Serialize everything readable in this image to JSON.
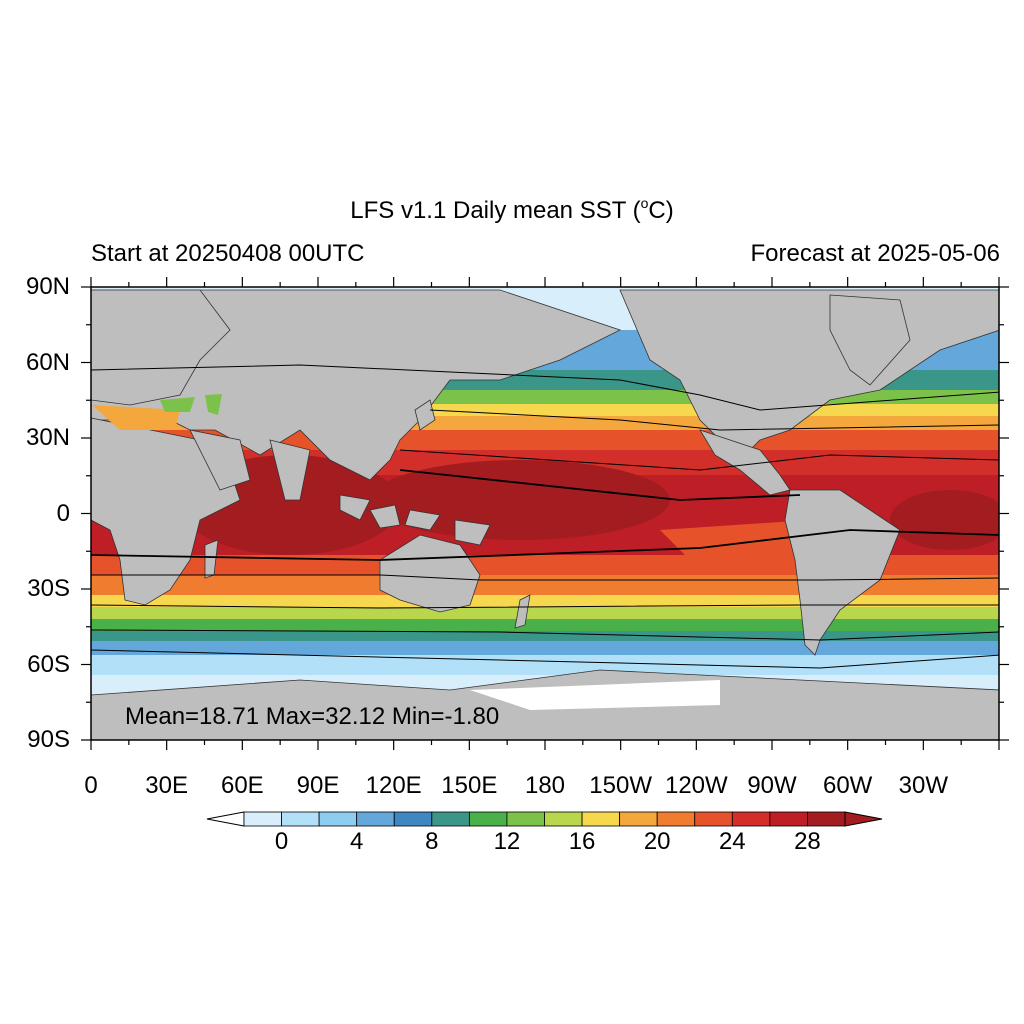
{
  "title": {
    "text": "LFS v1.1 Daily mean SST (",
    "sup": "o",
    "unit": "C)"
  },
  "subtitle_left": "Start at 20250408 00UTC",
  "subtitle_right": "Forecast at 2025-05-06",
  "stats": "Mean=18.71  Max=32.12  Min=-1.80",
  "lat_labels": [
    "90N",
    "60N",
    "30N",
    "0",
    "30S",
    "60S",
    "90S"
  ],
  "lon_labels": [
    "0",
    "30E",
    "60E",
    "90E",
    "120E",
    "150E",
    "180",
    "150W",
    "120W",
    "90W",
    "60W",
    "30W"
  ],
  "colorbar": {
    "labels": [
      "0",
      "4",
      "8",
      "12",
      "16",
      "20",
      "24",
      "28"
    ],
    "colors": [
      "#d9eefb",
      "#b2e0f8",
      "#8ecdf0",
      "#63a7db",
      "#3f87c0",
      "#3a9688",
      "#4ab04a",
      "#7cc24a",
      "#b9d64c",
      "#f6d84e",
      "#f3a73c",
      "#ef7c2f",
      "#e6522a",
      "#d22f2a",
      "#be1e26",
      "#a31c20"
    ],
    "min_color": "#ffffff",
    "max_color": "#a31c20"
  },
  "land_color": "#bebebe",
  "ice_color": "#d9eefb"
}
